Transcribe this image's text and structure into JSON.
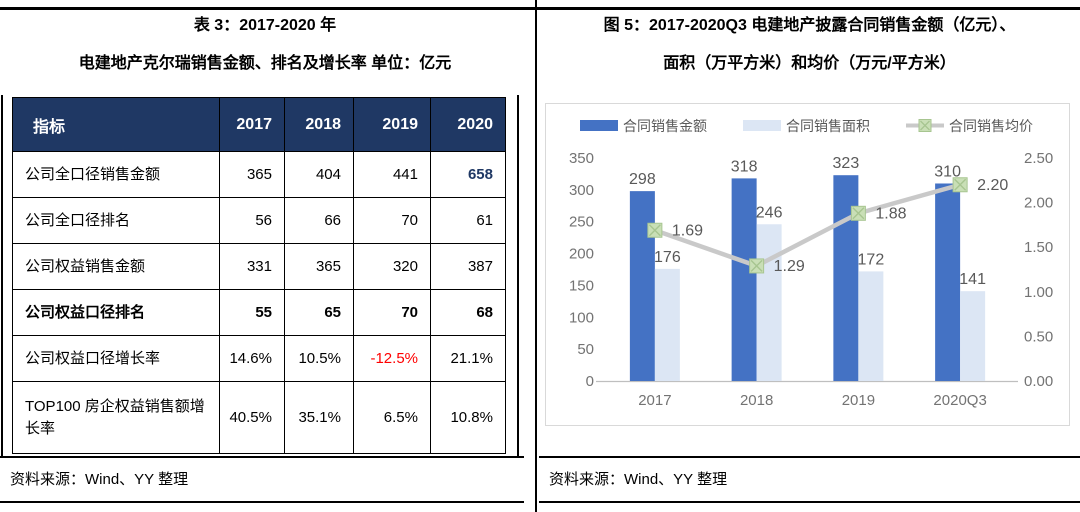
{
  "left_panel": {
    "title_line1": "表 3：2017-2020 年",
    "title_line2": "电建地产克尔瑞销售金额、排名及增长率 单位：亿元",
    "table": {
      "header": [
        "指标",
        "2017",
        "2018",
        "2019",
        "2020"
      ],
      "rows": [
        {
          "label": "公司全口径销售金额",
          "values": [
            "365",
            "404",
            "441",
            "658"
          ],
          "value_styles": [
            null,
            null,
            null,
            "accent"
          ]
        },
        {
          "label": "公司全口径排名",
          "values": [
            "56",
            "66",
            "70",
            "61"
          ]
        },
        {
          "label": "公司权益销售金额",
          "values": [
            "331",
            "365",
            "320",
            "387"
          ]
        },
        {
          "label": "公司权益口径排名",
          "values": [
            "55",
            "65",
            "70",
            "68"
          ],
          "row_style": "bold"
        },
        {
          "label": "公司权益口径增长率",
          "values": [
            "14.6%",
            "10.5%",
            "-12.5%",
            "21.1%"
          ],
          "value_styles": [
            null,
            null,
            "negative",
            null
          ]
        },
        {
          "label": "TOP100 房企权益销售额增长率",
          "values": [
            "40.5%",
            "35.1%",
            "6.5%",
            "10.8%"
          ]
        }
      ]
    },
    "source": "资料来源：Wind、YY 整理"
  },
  "right_panel": {
    "title_line1": "图 5：2017-2020Q3 电建地产披露合同销售金额（亿元）、",
    "title_line2": "面积（万平方米）和均价（万元/平方米）",
    "source": "资料来源：Wind、YY 整理"
  },
  "chart_data": {
    "type": "bar",
    "subtype": "combo-bar-line-dual-axis",
    "categories": [
      "2017",
      "2018",
      "2019",
      "2020Q3"
    ],
    "series": [
      {
        "name": "合同销售金额",
        "kind": "bar",
        "axis": "left",
        "color": "#4472C4",
        "values": [
          298,
          318,
          323,
          310
        ]
      },
      {
        "name": "合同销售面积",
        "kind": "bar",
        "axis": "left",
        "color": "#DCE6F4",
        "values": [
          176,
          246,
          172,
          141
        ]
      },
      {
        "name": "合同销售均价",
        "kind": "line",
        "axis": "right",
        "color": "#C9C9C9",
        "marker_fill": "#C9DFB6",
        "marker_stroke": "#A7C590",
        "values": [
          1.69,
          1.29,
          1.88,
          2.2
        ]
      }
    ],
    "left_axis": {
      "min": 0,
      "max": 350,
      "step": 50,
      "ticks": [
        "0",
        "50",
        "100",
        "150",
        "200",
        "250",
        "300",
        "350"
      ]
    },
    "right_axis": {
      "min": 0,
      "max": 2.5,
      "step": 0.5,
      "ticks": [
        "0.00",
        "0.50",
        "1.00",
        "1.50",
        "2.00",
        "2.50"
      ]
    },
    "grid": false,
    "legend_position": "top",
    "style": {
      "label_color": "#595959",
      "tick_color": "#737373",
      "axis_color": "#BFBFBF"
    }
  },
  "colors": {
    "header_navy": "#1F3864",
    "accent_navy": "#1F3864",
    "negative_red": "#FF0000",
    "chart_border": "#D9D9D9"
  }
}
